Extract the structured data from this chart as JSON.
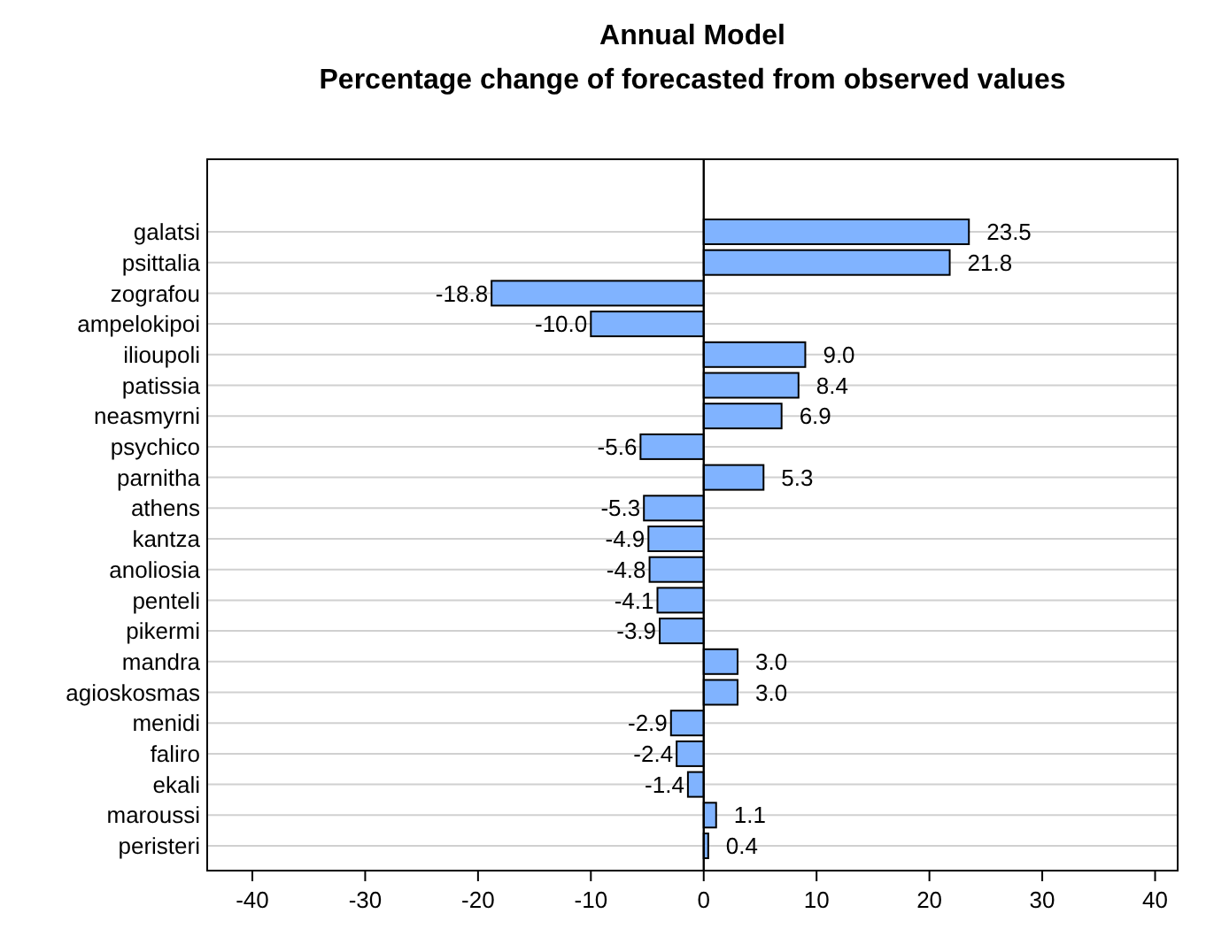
{
  "chart_data": {
    "type": "bar",
    "orientation": "horizontal",
    "title": "Annual Model",
    "subtitle": "Percentage change of forecasted from observed values",
    "categories": [
      "galatsi",
      "psittalia",
      "zografou",
      "ampelokipoi",
      "ilioupoli",
      "patissia",
      "neasmyrni",
      "psychico",
      "parnitha",
      "athens",
      "kantza",
      "anoliosia",
      "penteli",
      "pikermi",
      "mandra",
      "agioskosmas",
      "menidi",
      "faliro",
      "ekali",
      "maroussi",
      "peristeri"
    ],
    "values": [
      23.5,
      21.8,
      -18.8,
      -10.0,
      9.0,
      8.4,
      6.9,
      -5.6,
      5.3,
      -5.3,
      -4.9,
      -4.8,
      -4.1,
      -3.9,
      3.0,
      3.0,
      -2.9,
      -2.4,
      -1.4,
      1.1,
      0.4
    ],
    "value_labels": [
      "23.5",
      "21.8",
      "-18.8",
      "-10.0",
      "9.0",
      "8.4",
      "6.9",
      "-5.6",
      "5.3",
      "-5.3",
      "-4.9",
      "-4.8",
      "-4.1",
      "-3.9",
      "3.0",
      "3.0",
      "-2.9",
      "-2.4",
      "-1.4",
      "1.1",
      "0.4"
    ],
    "color": "#80b3ff",
    "xlim": [
      -44,
      42
    ],
    "xticks": [
      -40,
      -30,
      -20,
      -10,
      0,
      10,
      20,
      30,
      40
    ],
    "grid": "y",
    "ref_lines": [
      {
        "axis": "x",
        "value": 0,
        "color": "#000000"
      }
    ]
  }
}
